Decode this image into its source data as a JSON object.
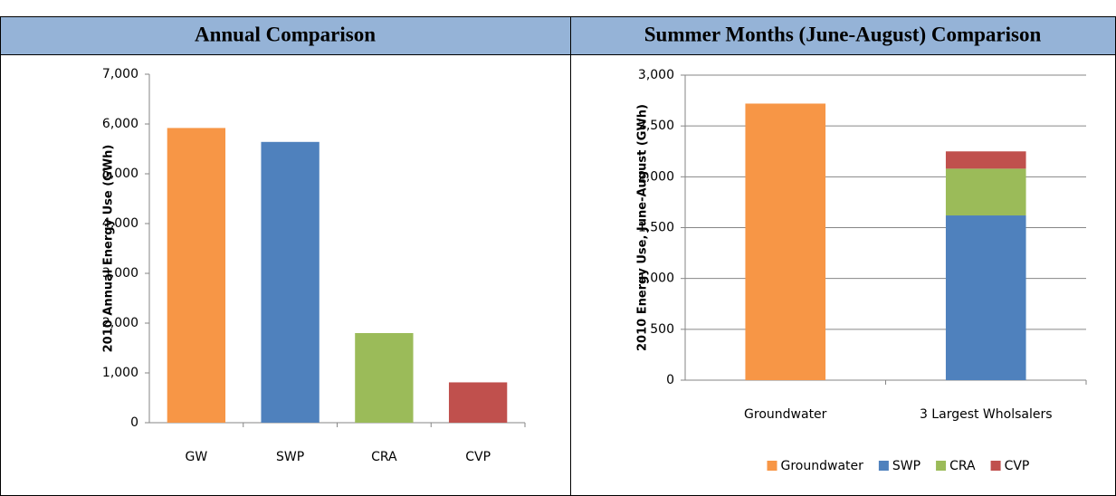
{
  "chart_data": [
    {
      "type": "bar",
      "title": "Annual Comparison",
      "ylabel": "2010 Annual Energy Use  (GWh)",
      "categories": [
        "GW",
        "SWP",
        "CRA",
        "CVP"
      ],
      "values": [
        5920,
        5640,
        1800,
        810
      ],
      "colors": [
        "#f79646",
        "#4f81bd",
        "#9bbb59",
        "#c0504d"
      ],
      "ylim": [
        0,
        7000
      ],
      "yticks": [
        0,
        {
          "value": 1000,
          "label": "1,000"
        },
        {
          "value": 2000,
          "label": "2,000"
        },
        {
          "value": 3000,
          "label": "3,000"
        },
        {
          "value": 4000,
          "label": "4,000"
        },
        {
          "value": 5000,
          "label": "5,000"
        },
        {
          "value": 6000,
          "label": "6,000"
        },
        {
          "value": 7000,
          "label": "7,000"
        }
      ],
      "grid": false
    },
    {
      "type": "stacked",
      "title": "Summer Months (June-August) Comparison",
      "ylabel": "2010 Energy Use, June-August  (GWh)",
      "categories": [
        "Groundwater",
        "3 Largest Wholsalers"
      ],
      "series": [
        {
          "name": "Groundwater",
          "color": "#f79646",
          "values": [
            2720,
            null
          ]
        },
        {
          "name": "SWP",
          "color": "#4f81bd",
          "values": [
            null,
            1620
          ]
        },
        {
          "name": "CRA",
          "color": "#9bbb59",
          "values": [
            null,
            460
          ]
        },
        {
          "name": "CVP",
          "color": "#c0504d",
          "values": [
            null,
            170
          ]
        }
      ],
      "ylim": [
        0,
        3000
      ],
      "yticks": [
        0,
        500,
        {
          "value": 1000,
          "label": "1,000"
        },
        {
          "value": 1500,
          "label": "1,500"
        },
        {
          "value": 2000,
          "label": "2,000"
        },
        {
          "value": 2500,
          "label": "2,500"
        },
        {
          "value": 3000,
          "label": "3,000"
        }
      ],
      "grid": true,
      "legend": "bottom"
    }
  ]
}
